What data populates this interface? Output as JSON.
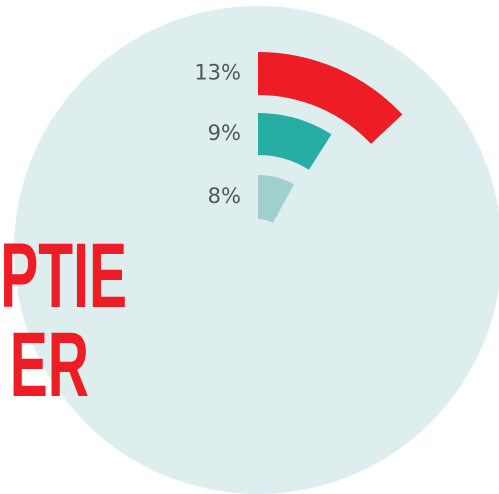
{
  "chart_data": {
    "type": "radial-bar",
    "annotations": [
      "PTIE",
      "ER"
    ],
    "categories": [
      null,
      null,
      null
    ],
    "values": [
      13,
      9,
      8
    ],
    "value_labels": [
      "13%",
      "9%",
      "8%"
    ],
    "colors": [
      "#ee1c25",
      "#26ada4",
      "#9fd0cd"
    ],
    "ylim": [
      0,
      100
    ]
  }
}
